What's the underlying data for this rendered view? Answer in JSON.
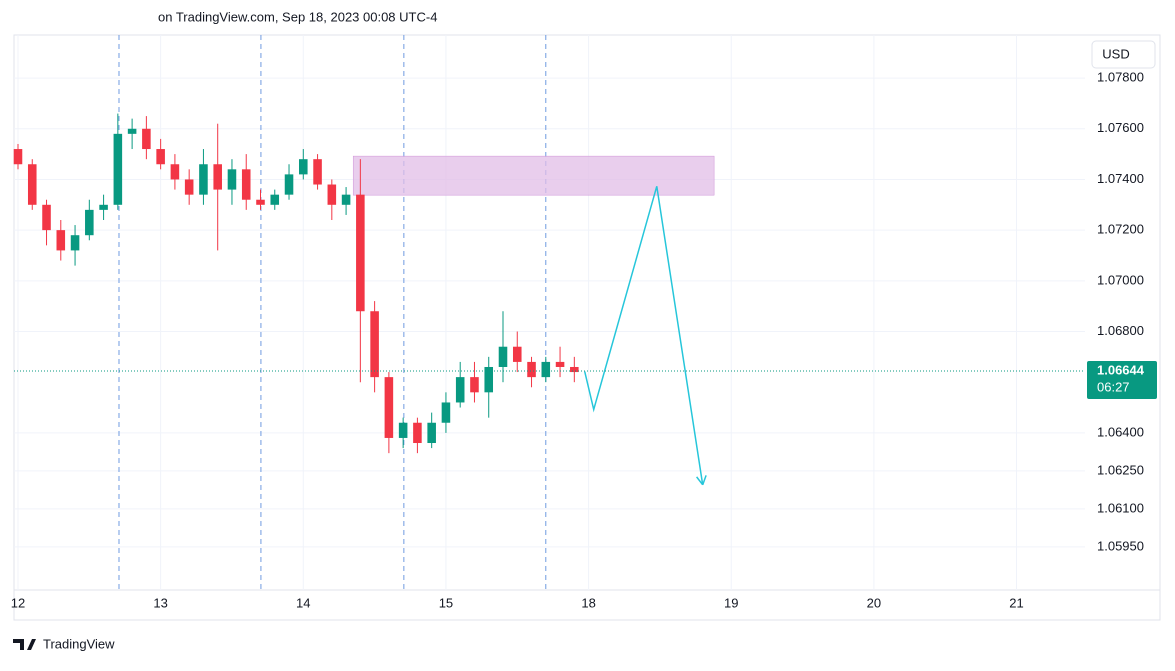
{
  "chart_data": {
    "type": "candlestick",
    "header": "on TradingView.com, Sep 18, 2023 00:08 UTC-4",
    "currency": "USD",
    "brand": "TradingView",
    "x": [
      0,
      0.1,
      0.2,
      0.3,
      0.4,
      0.5,
      0.6,
      0.7,
      0.8,
      0.9,
      1.0,
      1.1,
      1.2,
      1.3,
      1.4,
      1.5,
      1.6,
      1.7,
      1.8,
      1.9,
      2.0,
      2.1,
      2.2,
      2.3,
      2.4,
      2.5,
      2.6,
      2.7,
      2.8,
      2.9,
      3.0,
      3.1,
      3.2,
      3.3,
      3.4,
      3.5,
      3.6,
      3.7,
      3.8,
      3.9
    ],
    "open": [
      1.0752,
      1.0746,
      1.073,
      1.072,
      1.0712,
      1.0718,
      1.0728,
      1.073,
      1.0758,
      1.076,
      1.0752,
      1.0746,
      1.074,
      1.0734,
      1.0746,
      1.0736,
      1.0744,
      1.0732,
      1.073,
      1.0734,
      1.0742,
      1.0748,
      1.0738,
      1.073,
      1.0734,
      1.0688,
      1.0662,
      1.0638,
      1.0644,
      1.0636,
      1.0644,
      1.0652,
      1.0662,
      1.0656,
      1.0666,
      1.0674,
      1.0668,
      1.0662,
      1.0668,
      1.0666
    ],
    "high": [
      1.0754,
      1.0748,
      1.0732,
      1.0724,
      1.0722,
      1.0732,
      1.0734,
      1.0766,
      1.0764,
      1.0765,
      1.0756,
      1.075,
      1.0744,
      1.0752,
      1.0762,
      1.0748,
      1.075,
      1.0736,
      1.0736,
      1.0746,
      1.0752,
      1.075,
      1.074,
      1.0737,
      1.0748,
      1.0692,
      1.0664,
      1.0646,
      1.0646,
      1.0648,
      1.0656,
      1.0668,
      1.0668,
      1.067,
      1.0688,
      1.068,
      1.067,
      1.067,
      1.0674,
      1.067
    ],
    "low": [
      1.0744,
      1.0728,
      1.0714,
      1.0708,
      1.0706,
      1.0716,
      1.0724,
      1.0728,
      1.0752,
      1.0748,
      1.0744,
      1.0736,
      1.073,
      1.073,
      1.0712,
      1.073,
      1.0728,
      1.0728,
      1.0728,
      1.0732,
      1.074,
      1.0736,
      1.0724,
      1.0726,
      1.066,
      1.0656,
      1.0632,
      1.0634,
      1.0632,
      1.0634,
      1.064,
      1.065,
      1.0652,
      1.0646,
      1.066,
      1.0664,
      1.0658,
      1.066,
      1.0662,
      1.066
    ],
    "close": [
      1.0746,
      1.073,
      1.072,
      1.0712,
      1.0718,
      1.0728,
      1.073,
      1.0758,
      1.076,
      1.0752,
      1.0746,
      1.074,
      1.0734,
      1.0746,
      1.0736,
      1.0744,
      1.0732,
      1.073,
      1.0734,
      1.0742,
      1.0748,
      1.0738,
      1.073,
      1.0734,
      1.0688,
      1.0662,
      1.0638,
      1.0644,
      1.0636,
      1.0644,
      1.0652,
      1.0662,
      1.0656,
      1.0666,
      1.0674,
      1.0668,
      1.0662,
      1.0668,
      1.0666,
      1.0664
    ],
    "up_color": "#089981",
    "down_color": "#f23645",
    "xlim": [
      -0.028,
      7.48
    ],
    "xticks": [
      {
        "value": 0,
        "label": "12"
      },
      {
        "value": 1,
        "label": "13"
      },
      {
        "value": 2,
        "label": "14"
      },
      {
        "value": 3,
        "label": "15"
      },
      {
        "value": 4,
        "label": "18"
      },
      {
        "value": 5,
        "label": "19"
      },
      {
        "value": 6,
        "label": "20"
      },
      {
        "value": 7,
        "label": "21"
      }
    ],
    "session_lines": [
      0.708,
      1.703,
      2.705,
      3.7
    ],
    "ylim": [
      1.0578,
      1.0797
    ],
    "yticks": [
      {
        "value": 1.078,
        "label": "1.07800"
      },
      {
        "value": 1.076,
        "label": "1.07600"
      },
      {
        "value": 1.074,
        "label": "1.07400"
      },
      {
        "value": 1.072,
        "label": "1.07200"
      },
      {
        "value": 1.07,
        "label": "1.07000"
      },
      {
        "value": 1.068,
        "label": "1.06800"
      },
      {
        "value": 1.064,
        "label": "1.06400"
      },
      {
        "value": 1.0625,
        "label": "1.06250"
      },
      {
        "value": 1.061,
        "label": "1.06100"
      },
      {
        "value": 1.0595,
        "label": "1.05950"
      }
    ],
    "last_price": 1.06644,
    "countdown": "06:27",
    "zone": {
      "x": [
        2.35,
        4.88
      ],
      "y": [
        1.07338,
        1.07492
      ],
      "color": "#e1bee7"
    },
    "projection": {
      "x": [
        3.973,
        4.036,
        4.478,
        4.8
      ],
      "y": [
        1.06642,
        1.06492,
        1.07373,
        1.06195
      ],
      "color": "#26c6da"
    },
    "grid": true
  }
}
